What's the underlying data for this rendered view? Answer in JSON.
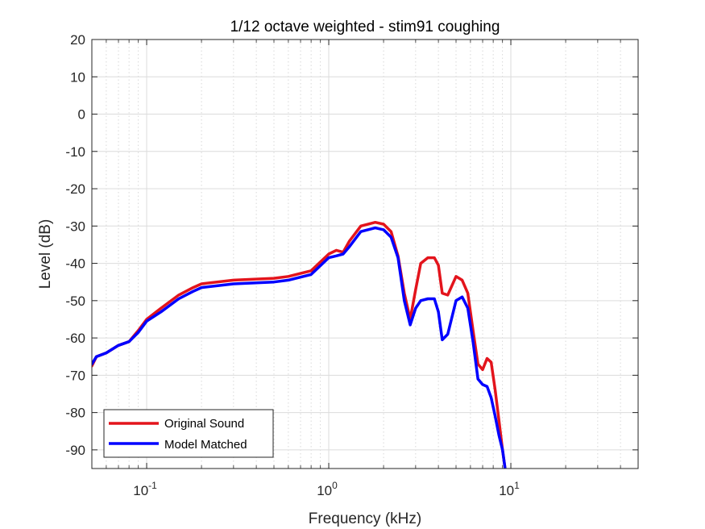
{
  "chart_data": {
    "type": "line",
    "title": "1/12 octave weighted - stim91 coughing",
    "xlabel": "Frequency (kHz)",
    "ylabel": "Level (dB)",
    "xscale": "log",
    "xlim": [
      0.05,
      50
    ],
    "ylim": [
      -95,
      20
    ],
    "grid": true,
    "minor_grid": true,
    "legend_location": "bottom-left",
    "x_ticks": [
      {
        "value": 0.1,
        "base": "10",
        "exp": "-1"
      },
      {
        "value": 1,
        "base": "10",
        "exp": "0"
      },
      {
        "value": 10,
        "base": "10",
        "exp": "1"
      }
    ],
    "y_ticks": [
      20,
      10,
      0,
      -10,
      -20,
      -30,
      -40,
      -50,
      -60,
      -70,
      -80,
      -90
    ],
    "series": [
      {
        "name": "Original Sound",
        "color": "#e3141c",
        "x": [
          0.05,
          0.053,
          0.06,
          0.07,
          0.08,
          0.09,
          0.1,
          0.12,
          0.15,
          0.18,
          0.2,
          0.3,
          0.5,
          0.6,
          0.8,
          1.0,
          1.1,
          1.2,
          1.3,
          1.5,
          1.8,
          2.0,
          2.2,
          2.4,
          2.6,
          2.8,
          3.0,
          3.2,
          3.5,
          3.8,
          4.0,
          4.2,
          4.5,
          5.0,
          5.4,
          5.8,
          6.2,
          6.6,
          7.0,
          7.4,
          7.8,
          8.2,
          8.6,
          9.0,
          9.3
        ],
        "values": [
          -67.5,
          -65,
          -64,
          -62,
          -61,
          -58,
          -55,
          -52,
          -48.5,
          -46.5,
          -45.5,
          -44.5,
          -44,
          -43.5,
          -42,
          -37.5,
          -36.5,
          -37,
          -34,
          -30,
          -29,
          -29.5,
          -31.5,
          -38,
          -48,
          -55,
          -47,
          -40,
          -38.5,
          -38.5,
          -40.5,
          -48,
          -48.5,
          -43.5,
          -44.5,
          -48,
          -58,
          -67,
          -68.5,
          -65.5,
          -66.5,
          -74,
          -82,
          -90,
          -95
        ]
      },
      {
        "name": "Model Matched",
        "color": "#0000ff",
        "x": [
          0.05,
          0.053,
          0.06,
          0.07,
          0.08,
          0.09,
          0.1,
          0.12,
          0.15,
          0.18,
          0.2,
          0.3,
          0.5,
          0.6,
          0.8,
          1.0,
          1.1,
          1.2,
          1.3,
          1.5,
          1.8,
          2.0,
          2.2,
          2.4,
          2.6,
          2.8,
          3.0,
          3.2,
          3.5,
          3.8,
          4.0,
          4.2,
          4.5,
          5.0,
          5.4,
          5.8,
          6.2,
          6.6,
          7.0,
          7.4,
          7.8,
          8.2,
          8.6,
          9.0,
          9.3
        ],
        "values": [
          -67,
          -65,
          -64,
          -62,
          -61,
          -58.5,
          -55.5,
          -53,
          -49.5,
          -47.5,
          -46.5,
          -45.5,
          -45,
          -44.5,
          -43,
          -38.5,
          -38,
          -37.5,
          -35.5,
          -31.5,
          -30.5,
          -31,
          -33,
          -38.5,
          -50,
          -56.5,
          -52,
          -50,
          -49.5,
          -49.5,
          -53,
          -60.5,
          -59,
          -50,
          -49,
          -52,
          -61,
          -71,
          -72.5,
          -73,
          -76,
          -81,
          -86,
          -90,
          -95
        ]
      }
    ]
  }
}
